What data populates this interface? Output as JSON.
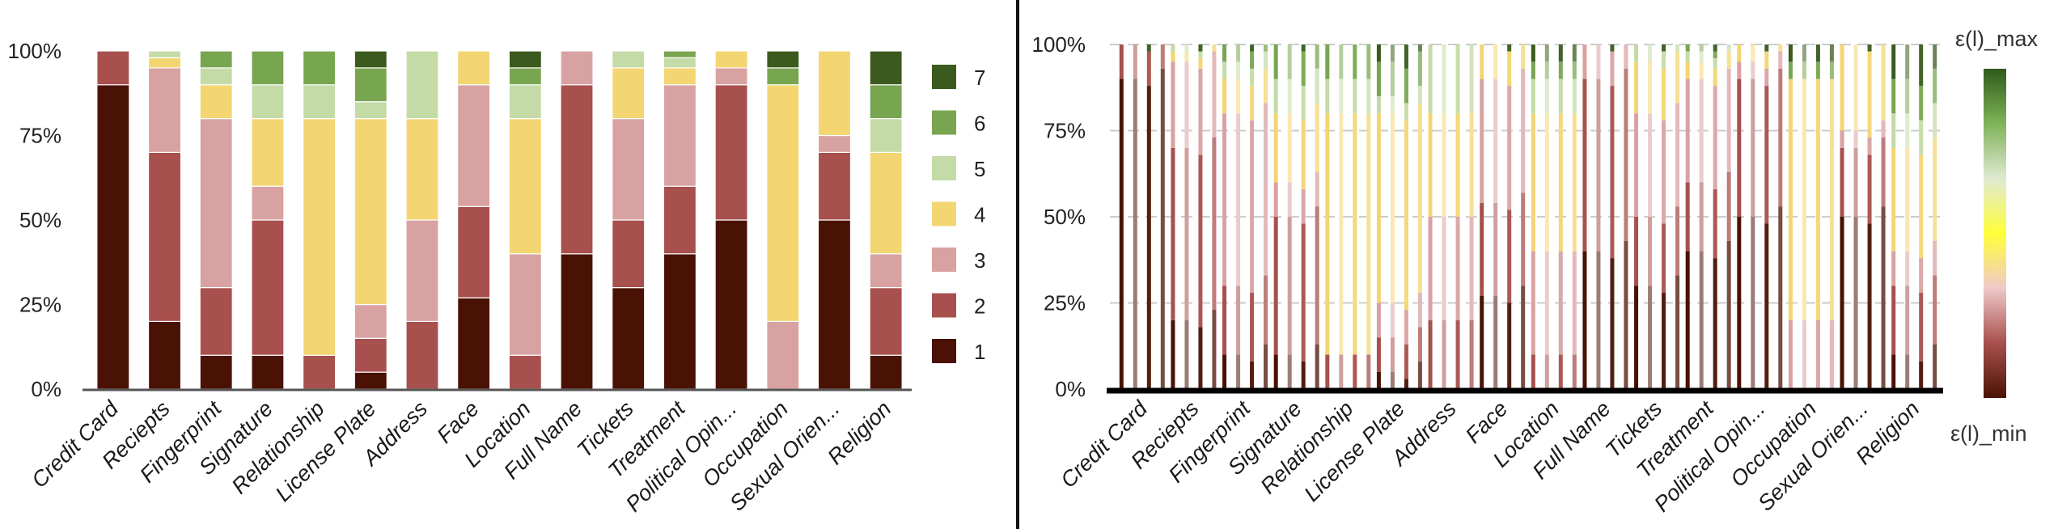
{
  "colors": {
    "levels": [
      "#4a1205",
      "#a8504d",
      "#d9a2a2",
      "#f3d672",
      "#c4dba8",
      "#78a550",
      "#3a5a1e"
    ],
    "divider": "#111111",
    "grid": "#cccccc",
    "colorbar": [
      "#4a1205",
      "#a8504d",
      "#efc9c9",
      "#ffff3a",
      "#dfe9d2",
      "#7fb358",
      "#2f5a1a"
    ]
  },
  "chart_data": [
    {
      "type": "bar",
      "stacked": true,
      "normalized": true,
      "title": "",
      "xlabel": "",
      "ylabel": "",
      "ylim": [
        0,
        100
      ],
      "yticks": [
        "0%",
        "25%",
        "50%",
        "75%",
        "100%"
      ],
      "legend_position": "right",
      "grid": false,
      "categories": [
        "Credit Card",
        "Reciepts",
        "Fingerprint",
        "Signature",
        "Relationship",
        "License Plate",
        "Address",
        "Face",
        "Location",
        "Full Name",
        "Tickets",
        "Treatment",
        "Political Opin...",
        "Occupation",
        "Sexual Orien...",
        "Religion"
      ],
      "series": [
        {
          "name": "1",
          "values": [
            90,
            20,
            10,
            10,
            0,
            5,
            0,
            27,
            0,
            40,
            30,
            40,
            50,
            0,
            50,
            10
          ]
        },
        {
          "name": "2",
          "values": [
            10,
            50,
            20,
            40,
            10,
            10,
            20,
            27,
            10,
            50,
            20,
            20,
            40,
            0,
            20,
            20
          ]
        },
        {
          "name": "3",
          "values": [
            0,
            25,
            50,
            10,
            0,
            10,
            30,
            36,
            30,
            10,
            30,
            30,
            5,
            20,
            5,
            10
          ]
        },
        {
          "name": "4",
          "values": [
            0,
            3,
            10,
            20,
            70,
            55,
            30,
            10,
            40,
            0,
            15,
            5,
            5,
            70,
            25,
            30
          ]
        },
        {
          "name": "5",
          "values": [
            0,
            2,
            5,
            10,
            10,
            5,
            20,
            0,
            10,
            0,
            5,
            3,
            0,
            0,
            0,
            10
          ]
        },
        {
          "name": "6",
          "values": [
            0,
            0,
            5,
            10,
            10,
            10,
            0,
            0,
            5,
            0,
            0,
            2,
            0,
            5,
            0,
            10
          ]
        },
        {
          "name": "7",
          "values": [
            0,
            0,
            0,
            0,
            0,
            5,
            0,
            0,
            5,
            0,
            0,
            0,
            0,
            5,
            0,
            10
          ]
        }
      ]
    },
    {
      "type": "bar",
      "stacked": true,
      "normalized": true,
      "title": "",
      "xlabel": "",
      "ylabel": "",
      "ylim": [
        0,
        100
      ],
      "yticks": [
        "0%",
        "25%",
        "50%",
        "75%",
        "100%"
      ],
      "grid": true,
      "bars_per_category": 4,
      "categories": [
        "Credit Card",
        "Reciepts",
        "Fingerprint",
        "Signature",
        "Relationship",
        "License Plate",
        "Address",
        "Face",
        "Location",
        "Full Name",
        "Tickets",
        "Treatment",
        "Political Opin...",
        "Occupation",
        "Sexual Orien...",
        "Religion"
      ],
      "colorbar": {
        "max_label": "ε(l)_max",
        "min_label": "ε(l)_min"
      }
    }
  ]
}
